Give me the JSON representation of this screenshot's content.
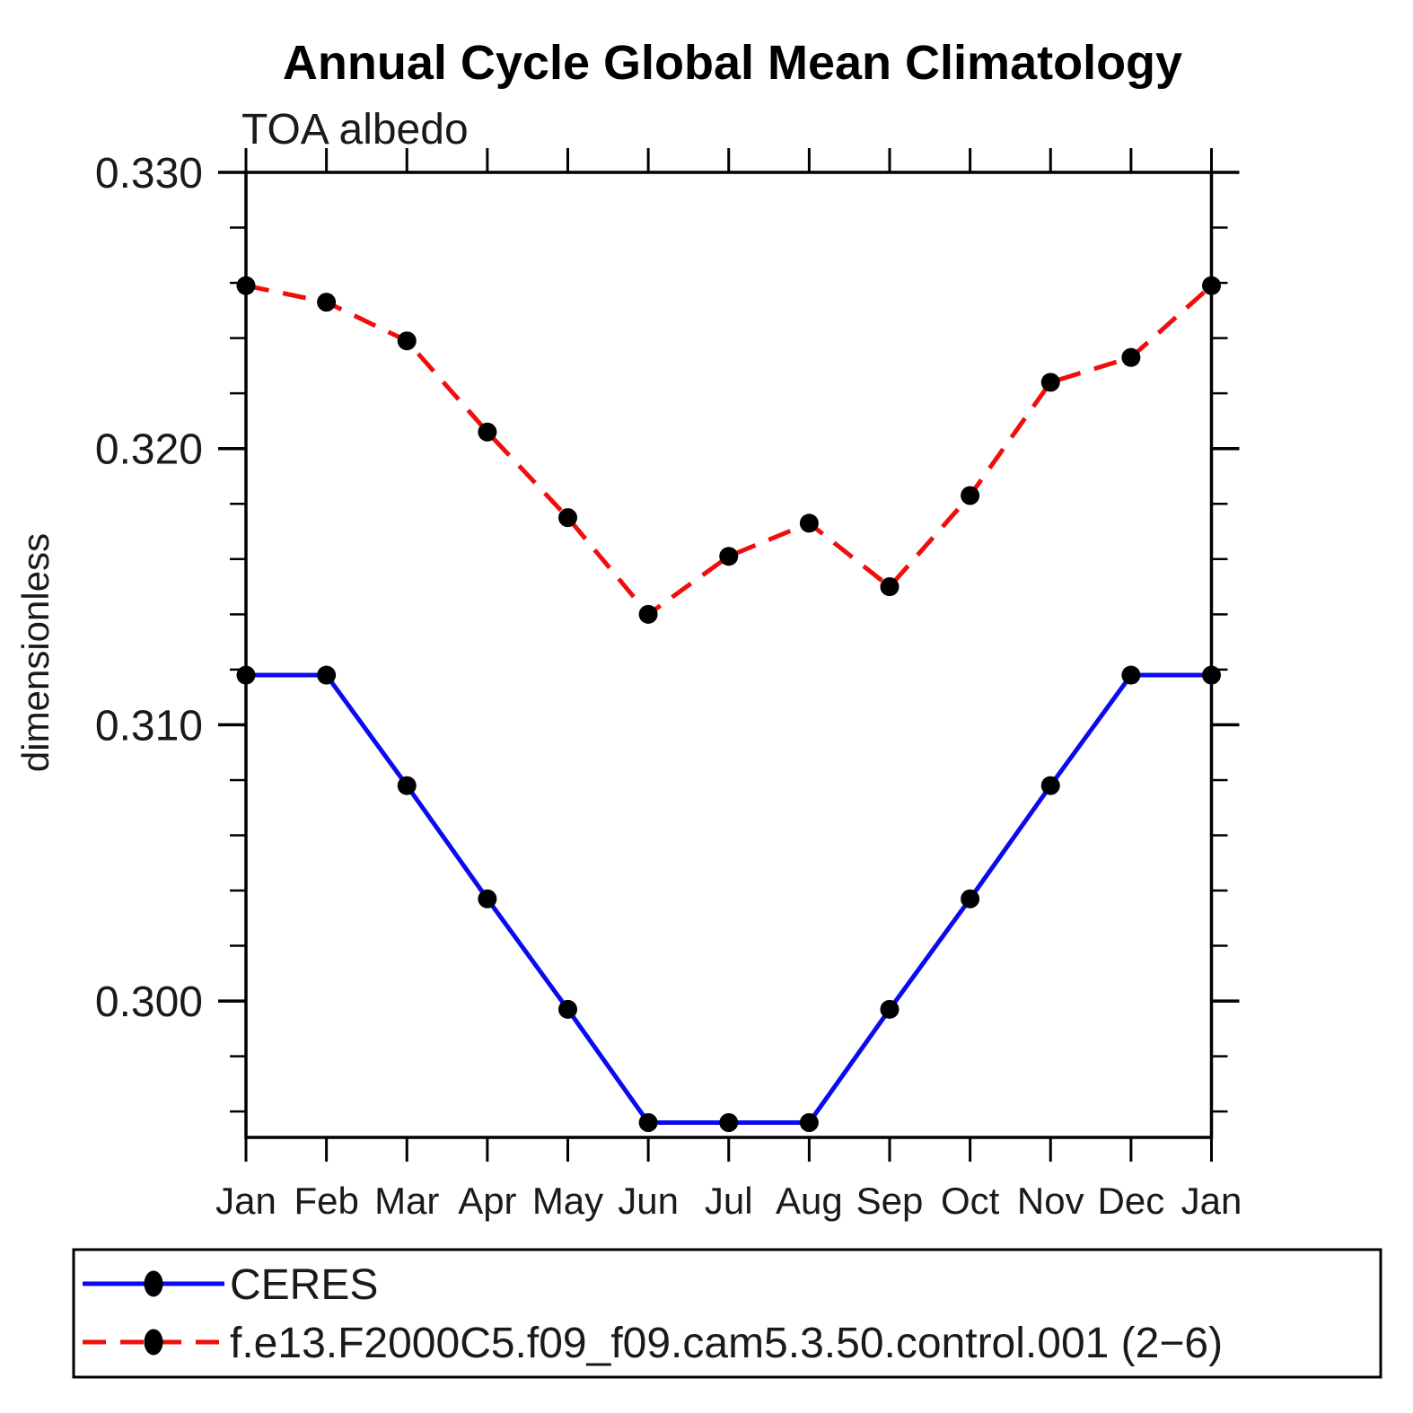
{
  "title": "Annual Cycle Global Mean Climatology",
  "subtitle": "TOA albedo",
  "ylabel": "dimensionless",
  "chart_data": {
    "type": "line",
    "title": "Annual Cycle Global Mean Climatology",
    "subtitle": "TOA albedo",
    "xlabel": "",
    "ylabel": "dimensionless",
    "categories": [
      "Jan",
      "Feb",
      "Mar",
      "Apr",
      "May",
      "Jun",
      "Jul",
      "Aug",
      "Sep",
      "Oct",
      "Nov",
      "Dec",
      "Jan"
    ],
    "series": [
      {
        "name": "CERES",
        "color": "#0a0af0",
        "line_style": "solid",
        "marker": "filled-circle",
        "marker_color": "#000000",
        "values": [
          0.3118,
          0.3118,
          0.3078,
          0.3037,
          0.2997,
          0.2956,
          0.2956,
          0.2956,
          0.2997,
          0.3037,
          0.3078,
          0.3118,
          0.3118
        ]
      },
      {
        "name": "f.e13.F2000C5.f09_f09.cam5.3.50.control.001 (2−6)",
        "color": "#f20d0d",
        "line_style": "dashed",
        "marker": "filled-circle",
        "marker_color": "#000000",
        "values": [
          0.3259,
          0.3253,
          0.3239,
          0.3206,
          0.3175,
          0.314,
          0.3161,
          0.3173,
          0.315,
          0.3183,
          0.3224,
          0.3233,
          0.3259
        ]
      }
    ],
    "y_axis": {
      "major_ticks": [
        0.33,
        0.32,
        0.31,
        0.3
      ],
      "tick_labels": [
        "0.330",
        "0.320",
        "0.310",
        "0.300"
      ],
      "minor_tick_step": 0.002,
      "max": 0.33,
      "min": 0.2951,
      "grid": false
    },
    "x_axis": {
      "tick_labels": [
        "Jan",
        "Feb",
        "Mar",
        "Apr",
        "May",
        "Jun",
        "Jul",
        "Aug",
        "Sep",
        "Oct",
        "Nov",
        "Dec",
        "Jan"
      ],
      "grid": false
    },
    "legend": {
      "position": "bottom",
      "entries": [
        "CERES",
        "f.e13.F2000C5.f09_f09.cam5.3.50.control.001 (2−6)"
      ]
    }
  }
}
